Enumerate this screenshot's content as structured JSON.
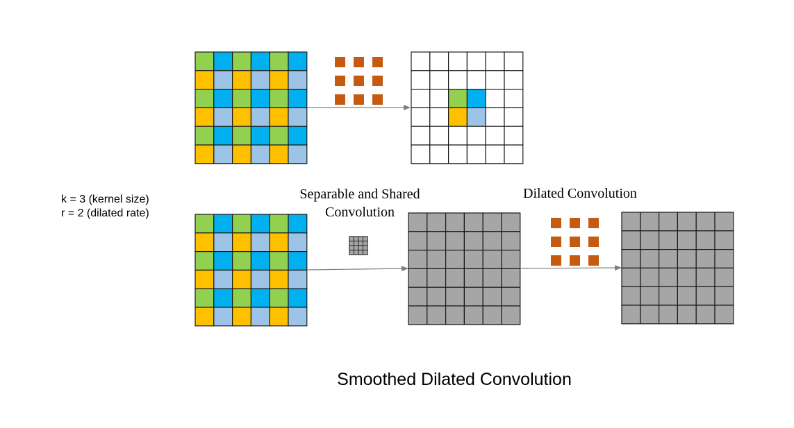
{
  "params": {
    "k_line": "k = 3 (kernel size)",
    "r_line": "r = 2 (dilated rate)"
  },
  "labels": {
    "separable_line1": "Separable and Shared",
    "separable_line2": "Convolution",
    "dilated": "Dilated Convolution"
  },
  "caption": "Smoothed Dilated Convolution",
  "colors": {
    "green": "#92D050",
    "blue": "#00B0F0",
    "yellow": "#FFC000",
    "light_blue": "#9DC3E6",
    "kernel_orange": "#C55A11",
    "gray": "#A6A6A6",
    "grid_line": "#1a1a1a",
    "arrow": "#7f7f7f"
  },
  "grid": {
    "rows": 6,
    "cols": 6,
    "pattern_rows": [
      [
        "green",
        "blue",
        "green",
        "blue",
        "green",
        "blue"
      ],
      [
        "yellow",
        "light_blue",
        "yellow",
        "light_blue",
        "yellow",
        "light_blue"
      ]
    ],
    "output_highlight": [
      [
        "green",
        "blue"
      ],
      [
        "yellow",
        "light_blue"
      ]
    ]
  },
  "kernel": {
    "size": 3,
    "dilated_rate": 2
  }
}
